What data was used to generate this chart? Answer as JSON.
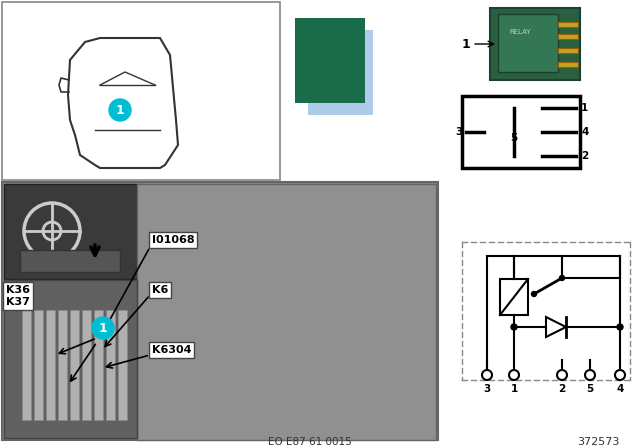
{
  "bg_color": "#ffffff",
  "color_rect_green": "#1a6b4a",
  "color_rect_blue": "#aecce8",
  "bottom_text1": "EO E87 61 0015",
  "bottom_text2": "372573",
  "callout_color": "#00bcd4",
  "pin_numbers": [
    "1",
    "2",
    "3",
    "4",
    "5"
  ]
}
